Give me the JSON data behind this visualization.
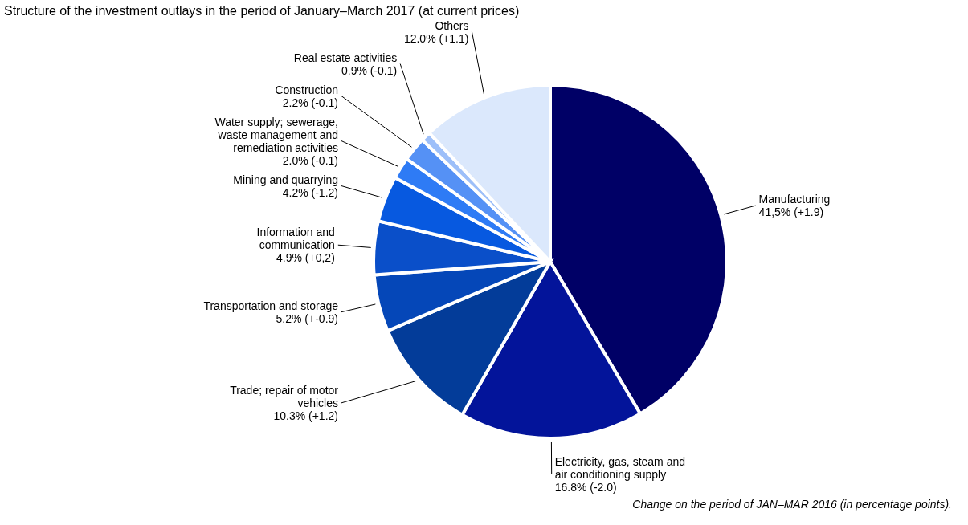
{
  "chart_data": {
    "type": "pie",
    "title": "Structure of the investment outlays in the period of January–March 2017 (at current prices)",
    "categories": [
      "Manufacturing",
      "Electricity, gas, steam and air conditioning supply",
      "Trade; repair of motor vehicles",
      "Transportation and storage",
      "Information and communication",
      "Mining and quarrying",
      "Water supply; sewerage, waste management and remediation activities",
      "Construction",
      "Real estate activities",
      "Others"
    ],
    "values": [
      41.5,
      16.8,
      10.3,
      5.2,
      4.9,
      4.2,
      2.0,
      2.2,
      0.9,
      12.0
    ],
    "value_labels": [
      "41,5% (+1.9)",
      "16.8% (-2.0)",
      "10.3% (+1.2)",
      "5.2% (+-0.9)",
      "4.9% (+0,2)",
      "4.2% (-1.2)",
      "2.0% (-0.1)",
      "2.2% (-0.1)",
      "0.9% (-0.1)",
      "12.0% (+1.1)"
    ],
    "colors": [
      "#000066",
      "#03149a",
      "#033c99",
      "#0547b8",
      "#0a4fc9",
      "#0759e0",
      "#2e7bf5",
      "#5591f5",
      "#9dbff9",
      "#dbe8fc"
    ],
    "annotations": [
      "Change on the period of JAN–MAR 2016 (in percentage points)."
    ]
  }
}
